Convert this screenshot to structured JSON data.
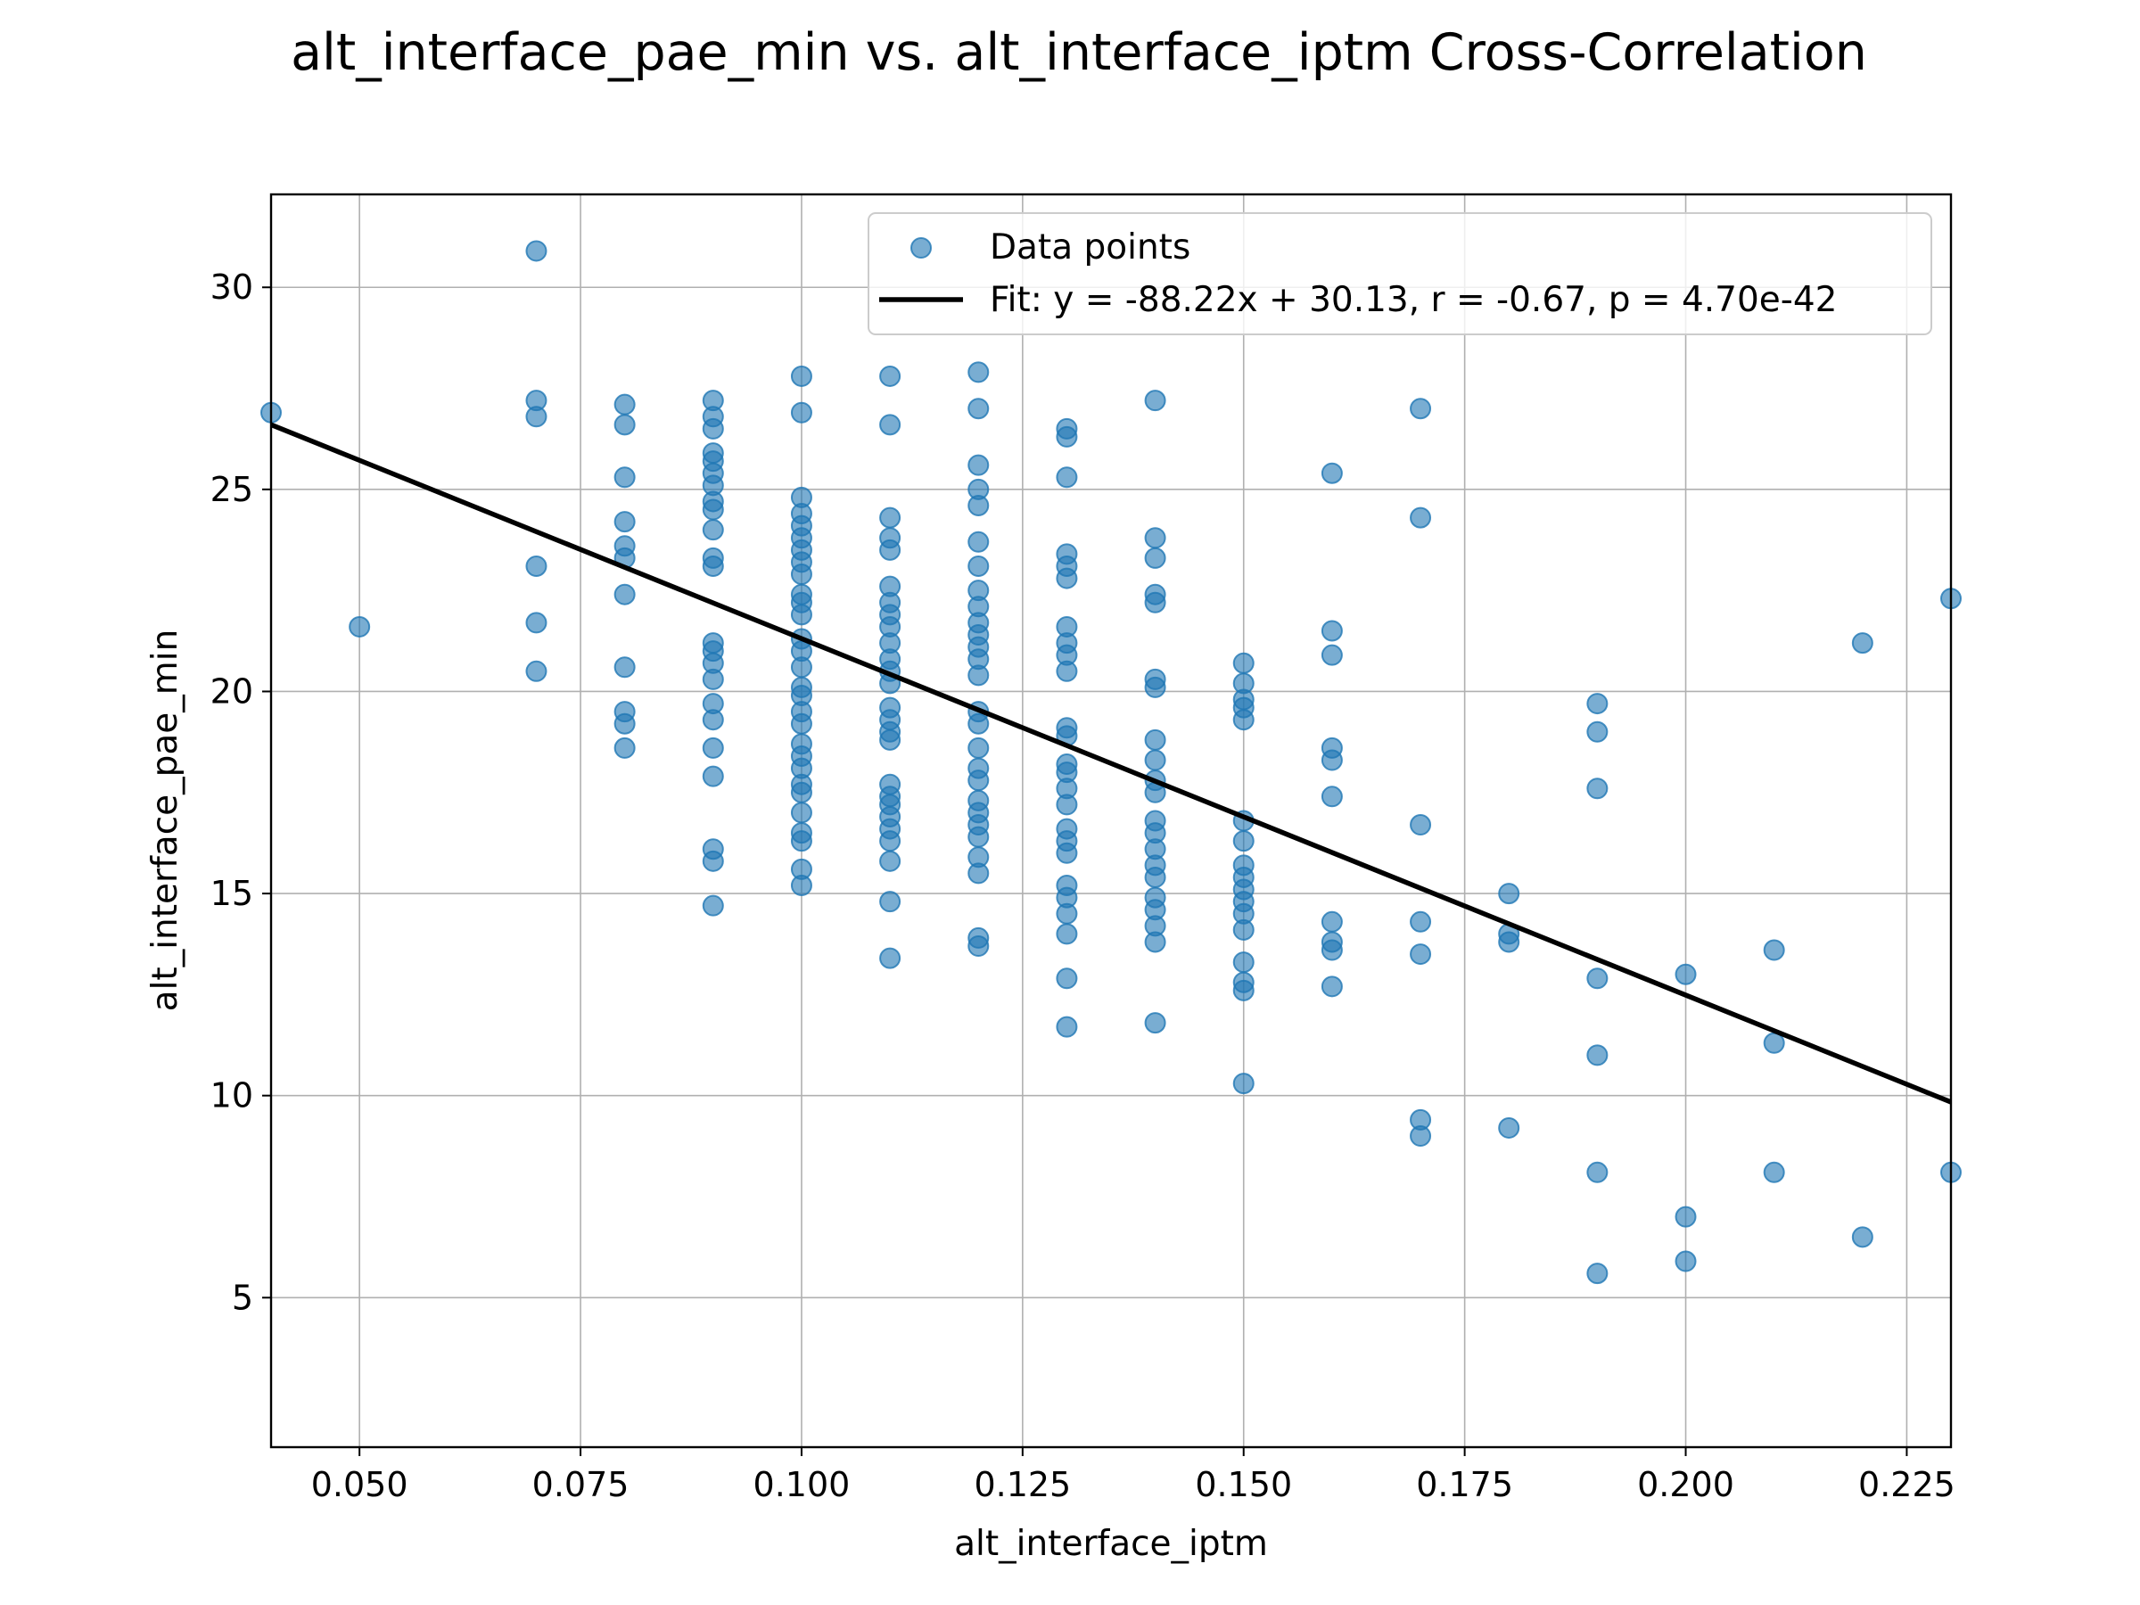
{
  "chart_data": {
    "type": "scatter",
    "title": "alt_interface_pae_min vs. alt_interface_iptm Cross-Correlation",
    "xlabel": "alt_interface_iptm",
    "ylabel": "alt_interface_pae_min",
    "xlim": [
      0.04,
      0.23
    ],
    "ylim": [
      1.3,
      32.3
    ],
    "grid": true,
    "legend_position": "top-right",
    "x_ticks": [
      {
        "value": 0.05,
        "label": "0.050"
      },
      {
        "value": 0.075,
        "label": "0.075"
      },
      {
        "value": 0.1,
        "label": "0.100"
      },
      {
        "value": 0.125,
        "label": "0.125"
      },
      {
        "value": 0.15,
        "label": "0.150"
      },
      {
        "value": 0.175,
        "label": "0.175"
      },
      {
        "value": 0.2,
        "label": "0.200"
      },
      {
        "value": 0.225,
        "label": "0.225"
      }
    ],
    "y_ticks": [
      {
        "value": 5,
        "label": "5"
      },
      {
        "value": 10,
        "label": "10"
      },
      {
        "value": 15,
        "label": "15"
      },
      {
        "value": 20,
        "label": "20"
      },
      {
        "value": 25,
        "label": "25"
      },
      {
        "value": 30,
        "label": "30"
      }
    ],
    "series": [
      {
        "name": "Data points",
        "kind": "scatter",
        "color": "#1f77b4",
        "points": [
          [
            0.04,
            26.9
          ],
          [
            0.05,
            21.6
          ],
          [
            0.07,
            30.9
          ],
          [
            0.07,
            27.2
          ],
          [
            0.07,
            26.8
          ],
          [
            0.07,
            23.1
          ],
          [
            0.07,
            21.7
          ],
          [
            0.07,
            20.5
          ],
          [
            0.08,
            27.1
          ],
          [
            0.08,
            26.6
          ],
          [
            0.08,
            25.3
          ],
          [
            0.08,
            24.2
          ],
          [
            0.08,
            23.6
          ],
          [
            0.08,
            23.3
          ],
          [
            0.08,
            22.4
          ],
          [
            0.08,
            20.6
          ],
          [
            0.08,
            19.5
          ],
          [
            0.08,
            19.2
          ],
          [
            0.08,
            18.6
          ],
          [
            0.09,
            27.2
          ],
          [
            0.09,
            26.8
          ],
          [
            0.09,
            26.5
          ],
          [
            0.09,
            25.9
          ],
          [
            0.09,
            25.7
          ],
          [
            0.09,
            25.4
          ],
          [
            0.09,
            25.1
          ],
          [
            0.09,
            24.7
          ],
          [
            0.09,
            24.5
          ],
          [
            0.09,
            24.0
          ],
          [
            0.09,
            23.3
          ],
          [
            0.09,
            23.1
          ],
          [
            0.09,
            21.2
          ],
          [
            0.09,
            21.0
          ],
          [
            0.09,
            20.7
          ],
          [
            0.09,
            20.3
          ],
          [
            0.09,
            19.7
          ],
          [
            0.09,
            19.3
          ],
          [
            0.09,
            18.6
          ],
          [
            0.09,
            17.9
          ],
          [
            0.09,
            16.1
          ],
          [
            0.09,
            15.8
          ],
          [
            0.09,
            14.7
          ],
          [
            0.1,
            27.8
          ],
          [
            0.1,
            26.9
          ],
          [
            0.1,
            24.8
          ],
          [
            0.1,
            24.4
          ],
          [
            0.1,
            24.1
          ],
          [
            0.1,
            23.8
          ],
          [
            0.1,
            23.5
          ],
          [
            0.1,
            23.2
          ],
          [
            0.1,
            22.9
          ],
          [
            0.1,
            22.4
          ],
          [
            0.1,
            22.2
          ],
          [
            0.1,
            21.9
          ],
          [
            0.1,
            21.3
          ],
          [
            0.1,
            21.0
          ],
          [
            0.1,
            20.6
          ],
          [
            0.1,
            20.1
          ],
          [
            0.1,
            19.9
          ],
          [
            0.1,
            19.5
          ],
          [
            0.1,
            19.2
          ],
          [
            0.1,
            18.7
          ],
          [
            0.1,
            18.4
          ],
          [
            0.1,
            18.1
          ],
          [
            0.1,
            17.7
          ],
          [
            0.1,
            17.5
          ],
          [
            0.1,
            17.0
          ],
          [
            0.1,
            16.5
          ],
          [
            0.1,
            16.3
          ],
          [
            0.1,
            15.6
          ],
          [
            0.1,
            15.2
          ],
          [
            0.11,
            27.8
          ],
          [
            0.11,
            26.6
          ],
          [
            0.11,
            24.3
          ],
          [
            0.11,
            23.8
          ],
          [
            0.11,
            23.5
          ],
          [
            0.11,
            22.6
          ],
          [
            0.11,
            22.2
          ],
          [
            0.11,
            21.9
          ],
          [
            0.11,
            21.6
          ],
          [
            0.11,
            21.2
          ],
          [
            0.11,
            20.8
          ],
          [
            0.11,
            20.5
          ],
          [
            0.11,
            20.2
          ],
          [
            0.11,
            19.6
          ],
          [
            0.11,
            19.3
          ],
          [
            0.11,
            19.0
          ],
          [
            0.11,
            18.8
          ],
          [
            0.11,
            17.7
          ],
          [
            0.11,
            17.4
          ],
          [
            0.11,
            17.2
          ],
          [
            0.11,
            16.9
          ],
          [
            0.11,
            16.6
          ],
          [
            0.11,
            16.3
          ],
          [
            0.11,
            15.8
          ],
          [
            0.11,
            14.8
          ],
          [
            0.11,
            13.4
          ],
          [
            0.12,
            27.9
          ],
          [
            0.12,
            27.0
          ],
          [
            0.12,
            25.6
          ],
          [
            0.12,
            25.0
          ],
          [
            0.12,
            24.6
          ],
          [
            0.12,
            23.7
          ],
          [
            0.12,
            23.1
          ],
          [
            0.12,
            22.5
          ],
          [
            0.12,
            22.1
          ],
          [
            0.12,
            21.7
          ],
          [
            0.12,
            21.4
          ],
          [
            0.12,
            21.1
          ],
          [
            0.12,
            20.8
          ],
          [
            0.12,
            20.4
          ],
          [
            0.12,
            19.5
          ],
          [
            0.12,
            19.2
          ],
          [
            0.12,
            18.6
          ],
          [
            0.12,
            18.1
          ],
          [
            0.12,
            17.8
          ],
          [
            0.12,
            17.3
          ],
          [
            0.12,
            17.0
          ],
          [
            0.12,
            16.7
          ],
          [
            0.12,
            16.4
          ],
          [
            0.12,
            15.9
          ],
          [
            0.12,
            15.5
          ],
          [
            0.12,
            13.9
          ],
          [
            0.12,
            13.7
          ],
          [
            0.13,
            26.5
          ],
          [
            0.13,
            26.3
          ],
          [
            0.13,
            25.3
          ],
          [
            0.13,
            23.4
          ],
          [
            0.13,
            23.1
          ],
          [
            0.13,
            22.8
          ],
          [
            0.13,
            21.6
          ],
          [
            0.13,
            21.2
          ],
          [
            0.13,
            20.9
          ],
          [
            0.13,
            20.5
          ],
          [
            0.13,
            19.1
          ],
          [
            0.13,
            18.9
          ],
          [
            0.13,
            18.2
          ],
          [
            0.13,
            18.0
          ],
          [
            0.13,
            17.6
          ],
          [
            0.13,
            17.2
          ],
          [
            0.13,
            16.6
          ],
          [
            0.13,
            16.3
          ],
          [
            0.13,
            16.0
          ],
          [
            0.13,
            15.2
          ],
          [
            0.13,
            14.9
          ],
          [
            0.13,
            14.5
          ],
          [
            0.13,
            14.0
          ],
          [
            0.13,
            12.9
          ],
          [
            0.13,
            11.7
          ],
          [
            0.14,
            27.2
          ],
          [
            0.14,
            23.8
          ],
          [
            0.14,
            23.3
          ],
          [
            0.14,
            22.4
          ],
          [
            0.14,
            22.2
          ],
          [
            0.14,
            20.3
          ],
          [
            0.14,
            20.1
          ],
          [
            0.14,
            18.8
          ],
          [
            0.14,
            18.3
          ],
          [
            0.14,
            17.8
          ],
          [
            0.14,
            17.5
          ],
          [
            0.14,
            16.8
          ],
          [
            0.14,
            16.5
          ],
          [
            0.14,
            16.1
          ],
          [
            0.14,
            15.7
          ],
          [
            0.14,
            15.4
          ],
          [
            0.14,
            14.9
          ],
          [
            0.14,
            14.6
          ],
          [
            0.14,
            14.2
          ],
          [
            0.14,
            13.8
          ],
          [
            0.14,
            11.8
          ],
          [
            0.15,
            20.7
          ],
          [
            0.15,
            20.2
          ],
          [
            0.15,
            19.8
          ],
          [
            0.15,
            19.6
          ],
          [
            0.15,
            19.3
          ],
          [
            0.15,
            16.8
          ],
          [
            0.15,
            16.3
          ],
          [
            0.15,
            15.7
          ],
          [
            0.15,
            15.4
          ],
          [
            0.15,
            15.1
          ],
          [
            0.15,
            14.8
          ],
          [
            0.15,
            14.5
          ],
          [
            0.15,
            14.1
          ],
          [
            0.15,
            13.3
          ],
          [
            0.15,
            12.8
          ],
          [
            0.15,
            12.6
          ],
          [
            0.15,
            10.3
          ],
          [
            0.16,
            25.4
          ],
          [
            0.16,
            21.5
          ],
          [
            0.16,
            20.9
          ],
          [
            0.16,
            18.6
          ],
          [
            0.16,
            18.3
          ],
          [
            0.16,
            17.4
          ],
          [
            0.16,
            14.3
          ],
          [
            0.16,
            13.8
          ],
          [
            0.16,
            13.6
          ],
          [
            0.16,
            12.7
          ],
          [
            0.17,
            27.0
          ],
          [
            0.17,
            24.3
          ],
          [
            0.17,
            16.7
          ],
          [
            0.17,
            14.3
          ],
          [
            0.17,
            13.5
          ],
          [
            0.17,
            9.4
          ],
          [
            0.17,
            9.0
          ],
          [
            0.18,
            15.0
          ],
          [
            0.18,
            14.0
          ],
          [
            0.18,
            13.8
          ],
          [
            0.18,
            9.2
          ],
          [
            0.19,
            19.7
          ],
          [
            0.19,
            19.0
          ],
          [
            0.19,
            17.6
          ],
          [
            0.19,
            12.9
          ],
          [
            0.19,
            11.0
          ],
          [
            0.19,
            8.1
          ],
          [
            0.19,
            5.6
          ],
          [
            0.2,
            13.0
          ],
          [
            0.2,
            7.0
          ],
          [
            0.2,
            5.9
          ],
          [
            0.21,
            13.6
          ],
          [
            0.21,
            11.3
          ],
          [
            0.21,
            8.1
          ],
          [
            0.22,
            21.2
          ],
          [
            0.22,
            6.5
          ],
          [
            0.23,
            22.3
          ],
          [
            0.23,
            8.1
          ]
        ]
      },
      {
        "name": "Fit: y = -88.22x + 30.13,  r = -0.67, p = 4.70e-42",
        "kind": "line",
        "color": "#000000",
        "slope": -88.22,
        "intercept": 30.13
      }
    ]
  }
}
